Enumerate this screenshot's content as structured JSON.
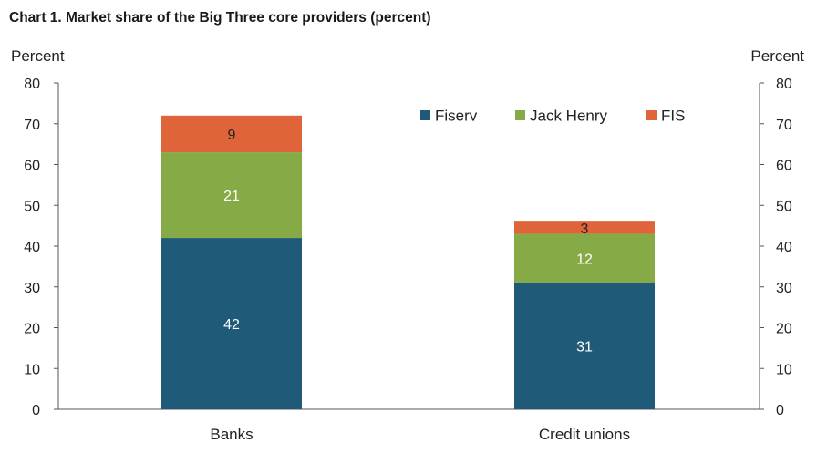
{
  "title": "Chart 1. Market share of the Big Three core providers (percent)",
  "chart_data": {
    "type": "bar",
    "stacked": true,
    "title": "Chart 1. Market share of the Big Three core providers (percent)",
    "ylabel_left": "Percent",
    "ylabel_right": "Percent",
    "ylim": [
      0,
      80
    ],
    "yticks": [
      0,
      10,
      20,
      30,
      40,
      50,
      60,
      70,
      80
    ],
    "categories": [
      "Banks",
      "Credit unions"
    ],
    "series": [
      {
        "name": "Fiserv",
        "values": [
          42,
          31
        ],
        "color": "#1f5a78",
        "label_color": "#ffffff"
      },
      {
        "name": "Jack Henry",
        "values": [
          21,
          12
        ],
        "color": "#86aa45",
        "label_color": "#ffffff"
      },
      {
        "name": "FIS",
        "values": [
          9,
          3
        ],
        "color": "#e0643a",
        "label_color": "#222222"
      }
    ],
    "legend_position": "top-right",
    "grid": false
  }
}
